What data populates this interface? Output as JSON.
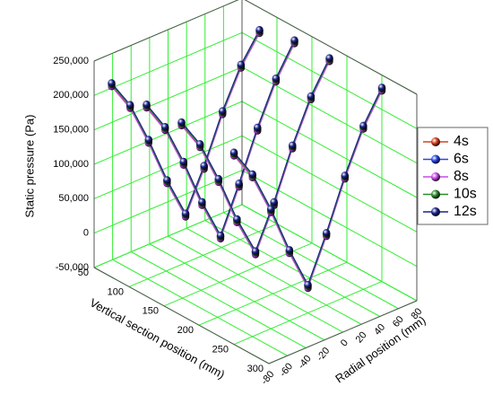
{
  "chart_data": {
    "type": "line3d",
    "zlabel": "Static pressure (Pa)",
    "ylabel": "Vertical section position (mm)",
    "xlabel": "Radial position (mm)",
    "x": [
      -80,
      -60,
      -40,
      -20,
      0,
      20,
      40,
      60,
      80
    ],
    "sections": [
      75,
      125,
      175,
      250
    ],
    "xlim": [
      -80,
      80
    ],
    "xticks": [
      -80,
      -60,
      -40,
      -20,
      0,
      20,
      40,
      60,
      80
    ],
    "ylim": [
      50,
      300
    ],
    "yticks": [
      50,
      100,
      150,
      200,
      250,
      300
    ],
    "zlim": [
      -50000,
      250000
    ],
    "zticks": [
      {
        "value": -50000,
        "label": "-50,000"
      },
      0,
      {
        "value": 50000,
        "label": "50,000"
      },
      {
        "value": 100000,
        "label": "100,000"
      },
      {
        "value": 150000,
        "label": "150,000"
      },
      {
        "value": 200000,
        "label": "200,000"
      },
      {
        "value": 250000,
        "label": "250,000"
      }
    ],
    "grid": true,
    "grid_color": "#33ee33",
    "series": [
      {
        "name": "4s",
        "color": "#d8401c",
        "values": [
          [
            229000,
            186000,
            124000,
            54000,
            -6000,
            52000,
            120000,
            176000,
            215000
          ],
          [
            226000,
            182000,
            120000,
            50000,
            -10000,
            54000,
            124000,
            184000,
            228000
          ],
          [
            228000,
            185000,
            123000,
            53000,
            -5000,
            55000,
            126000,
            186000,
            230000
          ],
          [
            226000,
            183000,
            121000,
            50000,
            -12000,
            52000,
            124000,
            185000,
            229000
          ]
        ]
      },
      {
        "name": "6s",
        "color": "#2a46e6",
        "values": [
          [
            231000,
            188000,
            126000,
            56000,
            -4000,
            54000,
            122000,
            178000,
            217000
          ],
          [
            228000,
            184000,
            122000,
            52000,
            -8000,
            56000,
            126000,
            186000,
            230000
          ],
          [
            230000,
            187000,
            125000,
            55000,
            -3000,
            57000,
            128000,
            188000,
            232000
          ],
          [
            228000,
            185000,
            123000,
            52000,
            -10000,
            54000,
            126000,
            187000,
            231000
          ]
        ]
      },
      {
        "name": "8s",
        "color": "#c94ae6",
        "values": [
          [
            227000,
            184000,
            122000,
            52000,
            -8000,
            50000,
            118000,
            174000,
            213000
          ],
          [
            224000,
            180000,
            118000,
            48000,
            -12000,
            52000,
            122000,
            182000,
            226000
          ],
          [
            226000,
            183000,
            121000,
            51000,
            -7000,
            53000,
            124000,
            184000,
            228000
          ],
          [
            224000,
            181000,
            119000,
            48000,
            -14000,
            50000,
            122000,
            183000,
            227000
          ]
        ]
      },
      {
        "name": "10s",
        "color": "#2a8a2a",
        "values": [
          [
            230000,
            187000,
            125000,
            55000,
            -5000,
            53000,
            121000,
            177000,
            216000
          ],
          [
            227000,
            183000,
            121000,
            51000,
            -9000,
            55000,
            125000,
            185000,
            229000
          ],
          [
            229000,
            186000,
            124000,
            54000,
            -4000,
            56000,
            127000,
            187000,
            231000
          ],
          [
            227000,
            184000,
            122000,
            51000,
            -11000,
            53000,
            125000,
            186000,
            230000
          ]
        ]
      },
      {
        "name": "12s",
        "color": "#1c248c",
        "values": [
          [
            232000,
            189000,
            127000,
            57000,
            -3000,
            55000,
            123000,
            179000,
            218000
          ],
          [
            229000,
            185000,
            123000,
            53000,
            -7000,
            57000,
            127000,
            187000,
            231000
          ],
          [
            231000,
            188000,
            126000,
            56000,
            -2000,
            58000,
            129000,
            189000,
            233000
          ],
          [
            229000,
            186000,
            124000,
            53000,
            -9000,
            55000,
            127000,
            188000,
            232000
          ]
        ]
      }
    ]
  }
}
